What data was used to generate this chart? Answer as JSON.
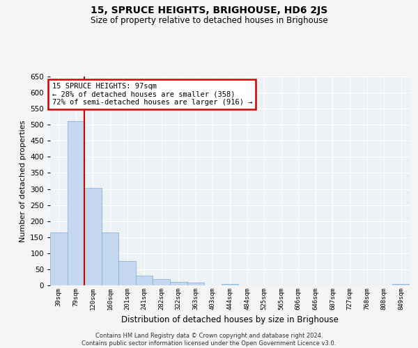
{
  "title": "15, SPRUCE HEIGHTS, BRIGHOUSE, HD6 2JS",
  "subtitle": "Size of property relative to detached houses in Brighouse",
  "xlabel": "Distribution of detached houses by size in Brighouse",
  "ylabel": "Number of detached properties",
  "bar_color": "#c5d8f0",
  "bar_edge_color": "#7aadd4",
  "categories": [
    "39sqm",
    "79sqm",
    "120sqm",
    "160sqm",
    "201sqm",
    "241sqm",
    "282sqm",
    "322sqm",
    "363sqm",
    "403sqm",
    "444sqm",
    "484sqm",
    "525sqm",
    "565sqm",
    "606sqm",
    "646sqm",
    "687sqm",
    "727sqm",
    "768sqm",
    "808sqm",
    "849sqm"
  ],
  "values": [
    165,
    512,
    303,
    165,
    75,
    30,
    20,
    10,
    8,
    0,
    5,
    0,
    0,
    0,
    0,
    0,
    0,
    0,
    0,
    0,
    5
  ],
  "ylim": [
    0,
    650
  ],
  "yticks": [
    0,
    50,
    100,
    150,
    200,
    250,
    300,
    350,
    400,
    450,
    500,
    550,
    600,
    650
  ],
  "red_line_x": 1.5,
  "annotation_text": "15 SPRUCE HEIGHTS: 97sqm\n← 28% of detached houses are smaller (358)\n72% of semi-detached houses are larger (916) →",
  "annotation_box_color": "#ffffff",
  "annotation_border_color": "#cc0000",
  "red_line_color": "#cc0000",
  "background_color": "#edf2f7",
  "grid_color": "#ffffff",
  "footer_line1": "Contains HM Land Registry data © Crown copyright and database right 2024.",
  "footer_line2": "Contains public sector information licensed under the Open Government Licence v3.0."
}
